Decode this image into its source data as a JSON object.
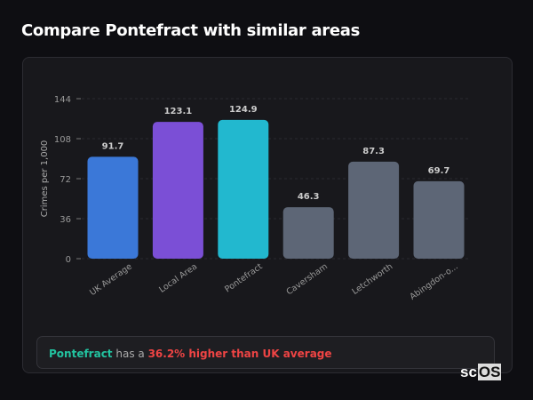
{
  "page_title": "Compare Pontefract with similar areas",
  "chart_data": {
    "type": "bar",
    "title": "",
    "ylabel": "Crimes per 1,000",
    "xlabel": "",
    "ylim": [
      0,
      144
    ],
    "yticks": [
      0,
      36,
      72,
      108,
      144
    ],
    "grid": true,
    "categories": [
      "UK Average",
      "Local Area",
      "Pontefract",
      "Caversham",
      "Letchworth",
      "Abingdon-o..."
    ],
    "values": [
      91.7,
      123.1,
      124.9,
      46.3,
      87.3,
      69.7
    ],
    "value_labels": [
      "91.7",
      "123.1",
      "124.9",
      "46.3",
      "87.3",
      "69.7"
    ],
    "colors": [
      "#3b78d8",
      "#7b4fd6",
      "#22b8cf",
      "#5d6676",
      "#5d6676",
      "#5d6676"
    ]
  },
  "summary": {
    "area": "Pontefract",
    "middle": " has a ",
    "comparison": "36.2% higher than UK average"
  },
  "logo": {
    "text_a": "sc",
    "text_b": "OS"
  }
}
